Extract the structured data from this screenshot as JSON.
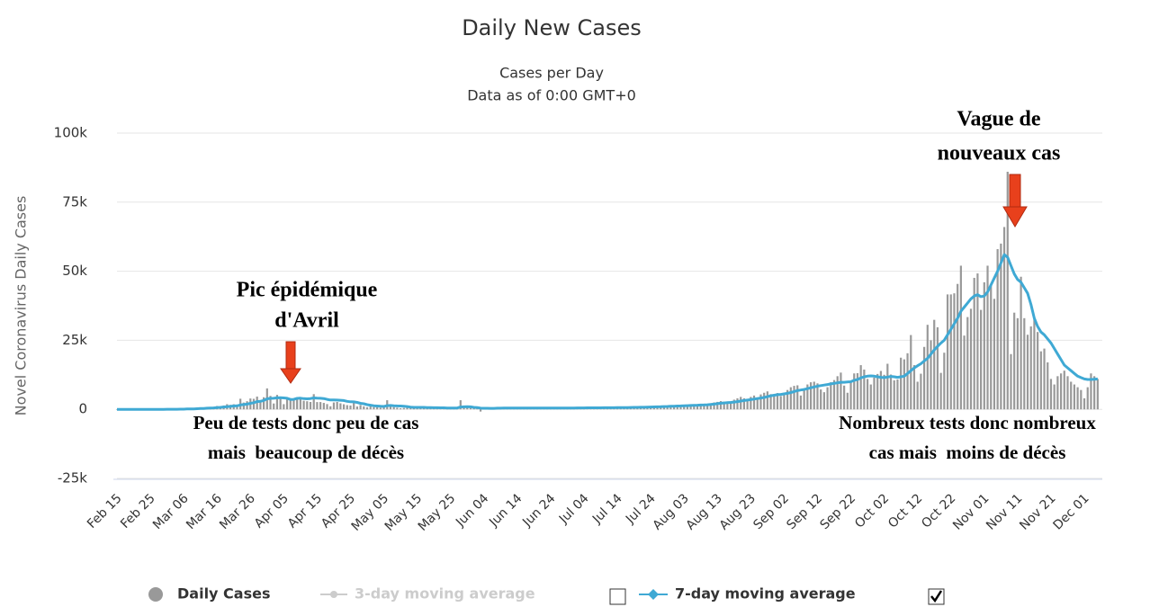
{
  "chart_data": {
    "type": "bar",
    "title": "Daily New Cases",
    "subtitle": [
      "Cases per Day",
      "Data as of 0:00 GMT+0"
    ],
    "y_axis_label": "Novel Coronavirus Daily Cases",
    "ylim": [
      -25000,
      100000
    ],
    "yticks": [
      {
        "value": -25000,
        "label": "-25k"
      },
      0,
      {
        "value": 25000,
        "label": "25k"
      },
      {
        "value": 50000,
        "label": "50k"
      },
      {
        "value": 75000,
        "label": "75k"
      },
      {
        "value": 100000,
        "label": "100k"
      }
    ],
    "grid": true,
    "annotations": [
      {
        "lines": [
          "Pic épidémique",
          "d'Avril"
        ]
      },
      {
        "lines": [
          "Peu de tests donc peu de cas",
          "mais  beaucoup de décès"
        ]
      },
      {
        "lines": [
          "Vague de",
          "nouveaux cas"
        ]
      },
      {
        "lines": [
          "Nombreux tests donc nombreux",
          "cas mais  moins de décès"
        ]
      }
    ],
    "categories": [
      "Feb 15",
      null,
      null,
      null,
      null,
      null,
      null,
      null,
      null,
      null,
      "Feb 25",
      null,
      null,
      null,
      null,
      null,
      null,
      null,
      null,
      null,
      "Mar 06",
      null,
      null,
      null,
      null,
      null,
      null,
      null,
      null,
      null,
      "Mar 16",
      null,
      null,
      null,
      null,
      null,
      null,
      null,
      null,
      null,
      "Mar 26",
      null,
      null,
      null,
      null,
      null,
      null,
      null,
      null,
      null,
      "Apr 05",
      null,
      null,
      null,
      null,
      null,
      null,
      null,
      null,
      null,
      "Apr 15",
      null,
      null,
      null,
      null,
      null,
      null,
      null,
      null,
      null,
      "Apr 25",
      null,
      null,
      null,
      null,
      null,
      null,
      null,
      null,
      null,
      "May 05",
      null,
      null,
      null,
      null,
      null,
      null,
      null,
      null,
      null,
      "May 15",
      null,
      null,
      null,
      null,
      null,
      null,
      null,
      null,
      null,
      "May 25",
      null,
      null,
      null,
      null,
      null,
      null,
      null,
      null,
      null,
      "Jun 04",
      null,
      null,
      null,
      null,
      null,
      null,
      null,
      null,
      null,
      "Jun 14",
      null,
      null,
      null,
      null,
      null,
      null,
      null,
      null,
      null,
      "Jun 24",
      null,
      null,
      null,
      null,
      null,
      null,
      null,
      null,
      null,
      "Jul 04",
      null,
      null,
      null,
      null,
      null,
      null,
      null,
      null,
      null,
      "Jul 14",
      null,
      null,
      null,
      null,
      null,
      null,
      null,
      null,
      null,
      "Jul 24",
      null,
      null,
      null,
      null,
      null,
      null,
      null,
      null,
      null,
      "Aug 03",
      null,
      null,
      null,
      null,
      null,
      null,
      null,
      null,
      null,
      "Aug 13",
      null,
      null,
      null,
      null,
      null,
      null,
      null,
      null,
      null,
      "Aug 23",
      null,
      null,
      null,
      null,
      null,
      null,
      null,
      null,
      null,
      "Sep 02",
      null,
      null,
      null,
      null,
      null,
      null,
      null,
      null,
      null,
      "Sep 12",
      null,
      null,
      null,
      null,
      null,
      null,
      null,
      null,
      null,
      "Sep 22",
      null,
      null,
      null,
      null,
      null,
      null,
      null,
      null,
      null,
      "Oct 02",
      null,
      null,
      null,
      null,
      null,
      null,
      null,
      null,
      null,
      "Oct 12",
      null,
      null,
      null,
      null,
      null,
      null,
      null,
      null,
      null,
      "Oct 22",
      null,
      null,
      null,
      null,
      null,
      null,
      null,
      null,
      null,
      "Nov 01",
      null,
      null,
      null,
      null,
      null,
      null,
      null,
      null,
      null,
      "Nov 11",
      null,
      null,
      null,
      null,
      null,
      null,
      null,
      null,
      null,
      "Nov 21",
      null,
      null,
      null,
      null,
      null,
      null,
      null,
      null,
      null,
      "Dec 01",
      null,
      null,
      null,
      null
    ],
    "series": [
      {
        "name": "Daily Cases",
        "color": "#999999",
        "kind": "bar",
        "values": [
          0,
          0,
          0,
          0,
          0,
          0,
          0,
          0,
          0,
          0,
          2,
          4,
          20,
          19,
          43,
          30,
          61,
          20,
          73,
          138,
          190,
          336,
          177,
          286,
          372,
          495,
          591,
          780,
          829,
          911,
          1210,
          1097,
          1404,
          1861,
          1617,
          1847,
          1559,
          3838,
          2446,
          2931,
          3922,
          3809,
          4611,
          2599,
          4376,
          7578,
          4861,
          2116,
          5233,
          4286,
          1873,
          3912,
          3777,
          3881,
          4286,
          4342,
          3114,
          2937,
          2673,
          5497,
          2633,
          2641,
          2325,
          1909,
          1101,
          2489,
          2666,
          2183,
          1833,
          1513,
          1383,
          2346,
          1031,
          1567,
          1088,
          758,
          1050,
          800,
          800,
          600,
          1000,
          3300,
          1300,
          800,
          600,
          400,
          500,
          1000,
          1200,
          700,
          500,
          600,
          400,
          500,
          1000,
          600,
          600,
          500,
          400,
          300,
          400,
          500,
          600,
          3300,
          1000,
          1100,
          500,
          300,
          400,
          -800,
          800,
          600,
          500,
          400,
          300,
          500,
          600,
          700,
          500,
          400,
          300,
          400,
          500,
          500,
          400,
          500,
          600,
          400,
          300,
          500,
          600,
          500,
          400,
          300,
          500,
          600,
          500,
          500,
          500,
          600,
          600,
          500,
          400,
          500,
          600,
          700,
          500,
          600,
          700,
          600,
          500,
          700,
          800,
          900,
          900,
          800,
          700,
          800,
          1000,
          1100,
          1200,
          900,
          800,
          1000,
          1200,
          1300,
          1400,
          1300,
          1000,
          1100,
          1200,
          1400,
          1500,
          1600,
          1800,
          2000,
          1700,
          1600,
          2200,
          2500,
          2700,
          3000,
          2800,
          2400,
          2800,
          3500,
          4000,
          4500,
          4000,
          3600,
          4500,
          5000,
          4200,
          5400,
          6000,
          6500,
          5500,
          5000,
          5900,
          4800,
          6000,
          7000,
          8000,
          8500,
          8700,
          5000,
          7000,
          9000,
          9800,
          10000,
          9400,
          7200,
          6200,
          8000,
          9800,
          10600,
          12000,
          13300,
          8600,
          6000,
          10000,
          13000,
          13100,
          16000,
          14400,
          11000,
          9000,
          11500,
          12800,
          13900,
          12500,
          16500,
          12600,
          10500,
          10800,
          18700,
          18100,
          20300,
          26900,
          16000,
          10000,
          12900,
          22600,
          30600,
          25000,
          32400,
          29700,
          13200,
          20500,
          41600,
          41600,
          42000,
          45400,
          52000,
          26700,
          33400,
          36400,
          47600,
          49200,
          36000,
          46000,
          52000,
          45000,
          40000,
          58000,
          60000,
          66000,
          86000,
          20000,
          35000,
          33000,
          48000,
          33000,
          27000,
          30000,
          33000,
          28000,
          21000,
          22000,
          17000,
          11000,
          9000,
          12000,
          13000,
          14000,
          12000,
          10000,
          9000,
          8000,
          7000,
          4000,
          8000,
          13000,
          12000,
          11000
        ]
      },
      {
        "name": "7-day moving average",
        "color": "#3fa9d4",
        "kind": "line",
        "values": [
          0,
          0,
          0,
          0,
          0,
          0,
          0,
          0,
          0,
          0,
          1,
          1,
          4,
          6,
          13,
          17,
          25,
          27,
          38,
          56,
          81,
          129,
          147,
          174,
          223,
          286,
          339,
          416,
          482,
          534,
          625,
          711,
          831,
          982,
          1084,
          1215,
          1262,
          1610,
          1722,
          1877,
          2177,
          2403,
          2802,
          2897,
          3232,
          3819,
          3970,
          3990,
          4180,
          4230,
          4120,
          4000,
          3590,
          3600,
          3960,
          4040,
          3870,
          3800,
          3900,
          4150,
          4050,
          4010,
          3890,
          3600,
          3400,
          3420,
          3360,
          3290,
          3200,
          2900,
          2720,
          2700,
          2520,
          2170,
          2020,
          1680,
          1500,
          1300,
          1200,
          1100,
          1050,
          1350,
          1400,
          1300,
          1250,
          1200,
          1100,
          1000,
          800,
          700,
          700,
          700,
          700,
          650,
          650,
          600,
          600,
          550,
          550,
          500,
          500,
          480,
          500,
          850,
          900,
          950,
          900,
          700,
          650,
          420,
          400,
          380,
          350,
          350,
          420,
          430,
          450,
          470,
          500,
          480,
          480,
          460,
          450,
          450,
          460,
          470,
          480,
          470,
          460,
          460,
          470,
          470,
          480,
          480,
          480,
          490,
          500,
          500,
          510,
          520,
          530,
          540,
          540,
          540,
          550,
          560,
          570,
          580,
          590,
          600,
          610,
          620,
          640,
          660,
          680,
          700,
          720,
          740,
          760,
          800,
          840,
          880,
          920,
          960,
          1000,
          1050,
          1100,
          1150,
          1200,
          1250,
          1300,
          1350,
          1400,
          1450,
          1500,
          1550,
          1600,
          1650,
          1750,
          1900,
          2050,
          2200,
          2300,
          2400,
          2500,
          2650,
          2800,
          3000,
          3200,
          3350,
          3500,
          3700,
          3900,
          4100,
          4300,
          4600,
          4900,
          5100,
          5300,
          5400,
          5600,
          5800,
          6100,
          6400,
          6800,
          7000,
          7200,
          7500,
          7800,
          8100,
          8400,
          8600,
          8800,
          9000,
          9200,
          9400,
          9600,
          9800,
          9800,
          9900,
          10000,
          10500,
          10800,
          11400,
          11800,
          12000,
          12100,
          12000,
          11800,
          11600,
          11500,
          11700,
          11900,
          11800,
          11600,
          11800,
          12000,
          13000,
          14000,
          15000,
          15800,
          16500,
          17500,
          18500,
          20000,
          21500,
          22800,
          24000,
          25000,
          27000,
          29000,
          31000,
          33000,
          35500,
          37000,
          38500,
          40000,
          41000,
          41500,
          40800,
          41000,
          42500,
          45000,
          47500,
          50000,
          53000,
          56000,
          55000,
          52000,
          49000,
          47000,
          46000,
          44000,
          42000,
          38000,
          33000,
          30000,
          28000,
          27000,
          25500,
          24000,
          22000,
          20000,
          18000,
          16000,
          15000,
          14000,
          13000,
          12000,
          11500,
          11000,
          10800,
          10800,
          10900,
          11000
        ]
      }
    ],
    "inactive_series": [
      {
        "name": "3-day moving average",
        "color": "#cccccc"
      }
    ]
  }
}
